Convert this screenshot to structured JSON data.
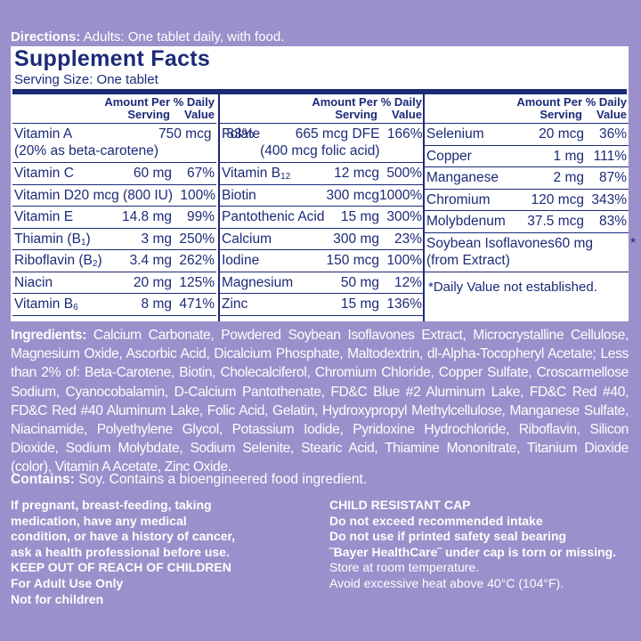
{
  "directions": {
    "label": "Directions:",
    "text": "Adults: One tablet daily, with food."
  },
  "facts": {
    "title": "Supplement Facts",
    "serving_size": "Serving Size: One tablet",
    "header": {
      "amount": "Amount Per Serving",
      "dv": "% Daily Value"
    },
    "columns": [
      [
        {
          "name": "Vitamin A",
          "name_note": "(20% as beta-carotene)",
          "amount": "750 mcg",
          "dv": "83%"
        },
        {
          "name": "Vitamin C",
          "amount": "60 mg",
          "dv": "67%"
        },
        {
          "name": "Vitamin D",
          "amount": "20 mcg (800 IU)",
          "dv": "100%"
        },
        {
          "name": "Vitamin E",
          "amount": "14.8 mg",
          "dv": "99%"
        },
        {
          "name": "Thiamin (B",
          "sub": "1",
          "after": ")",
          "amount": "3 mg",
          "dv": "250%"
        },
        {
          "name": "Riboflavin (B",
          "sub": "2",
          "after": ")",
          "amount": "3.4 mg",
          "dv": "262%"
        },
        {
          "name": "Niacin",
          "amount": "20 mg",
          "dv": "125%"
        },
        {
          "name": "Vitamin B",
          "sub": "6",
          "amount": "8 mg",
          "dv": "471%"
        }
      ],
      [
        {
          "name": "Folate",
          "amount": "665 mcg DFE",
          "amount_note": "(400 mcg folic acid)",
          "dv": "166%"
        },
        {
          "name": "Vitamin B",
          "sub": "12",
          "amount": "12 mcg",
          "dv": "500%"
        },
        {
          "name": "Biotin",
          "amount": "300 mcg",
          "dv": "1000%"
        },
        {
          "name": "Pantothenic Acid",
          "amount": "15 mg",
          "dv": "300%"
        },
        {
          "name": "Calcium",
          "amount": "300 mg",
          "dv": "23%"
        },
        {
          "name": "Iodine",
          "amount": "150 mcg",
          "dv": "100%"
        },
        {
          "name": "Magnesium",
          "amount": "50 mg",
          "dv": "12%"
        },
        {
          "name": "Zinc",
          "amount": "15 mg",
          "dv": "136%"
        }
      ],
      [
        {
          "name": "Selenium",
          "amount": "20 mcg",
          "dv": "36%"
        },
        {
          "name": "Copper",
          "amount": "1 mg",
          "dv": "111%"
        },
        {
          "name": "Manganese",
          "amount": "2 mg",
          "dv": "87%"
        },
        {
          "name": "Chromium",
          "amount": "120 mcg",
          "dv": "343%"
        },
        {
          "name": "Molybdenum",
          "amount": "37.5 mcg",
          "dv": "83%"
        },
        {
          "name": "Soybean Isoflavones",
          "name_note": "(from Extract)",
          "amount": "60 mg",
          "dv": "*"
        }
      ]
    ],
    "footnote": "*Daily Value not established."
  },
  "ingredients": {
    "label": "Ingredients:",
    "text": "Calcium Carbonate, Powdered Soybean Isoflavones Extract, Microcrystalline Cellulose, Magnesium Oxide, Ascorbic Acid, Dicalcium Phosphate, Maltodextrin, dl-Alpha-Tocopheryl Acetate; Less than 2% of: Beta-Carotene, Biotin, Cholecalciferol, Chromium Chloride, Copper Sulfate, Croscarmellose Sodium, Cyanocobalamin, D-Calcium Pantothenate, FD&C Blue #2 Aluminum Lake, FD&C Red #40, FD&C Red #40 Aluminum Lake, Folic Acid, Gelatin, Hydroxypropyl Methylcellulose, Manganese Sulfate, Niacinamide, Polyethylene Glycol, Potassium Iodide, Pyridoxine Hydrochloride, Riboflavin, Silicon Dioxide, Sodium Molybdate, Sodium Selenite, Stearic Acid, Thiamine Mononitrate, Titanium Dioxide (color), Vitamin A Acetate, Zinc Oxide."
  },
  "contains": {
    "label": "Contains:",
    "text": "Soy.  Contains a bioengineered food ingredient."
  },
  "warnings": {
    "left": [
      "If pregnant, breast-feeding, taking",
      "medication, have any medical",
      "condition, or have a history of cancer,",
      "ask a health professional before use.",
      "KEEP OUT OF REACH OF CHILDREN",
      "For Adult Use Only",
      "Not for children"
    ],
    "right_bold": [
      "CHILD RESISTANT CAP",
      "Do not exceed recommended intake",
      "Do not use if printed safety seal bearing",
      "˝Bayer HealthCare˝ under cap is torn or missing."
    ],
    "right": [
      "Store at room temperature.",
      "Avoid excessive heat above 40°C (104°F)."
    ]
  }
}
